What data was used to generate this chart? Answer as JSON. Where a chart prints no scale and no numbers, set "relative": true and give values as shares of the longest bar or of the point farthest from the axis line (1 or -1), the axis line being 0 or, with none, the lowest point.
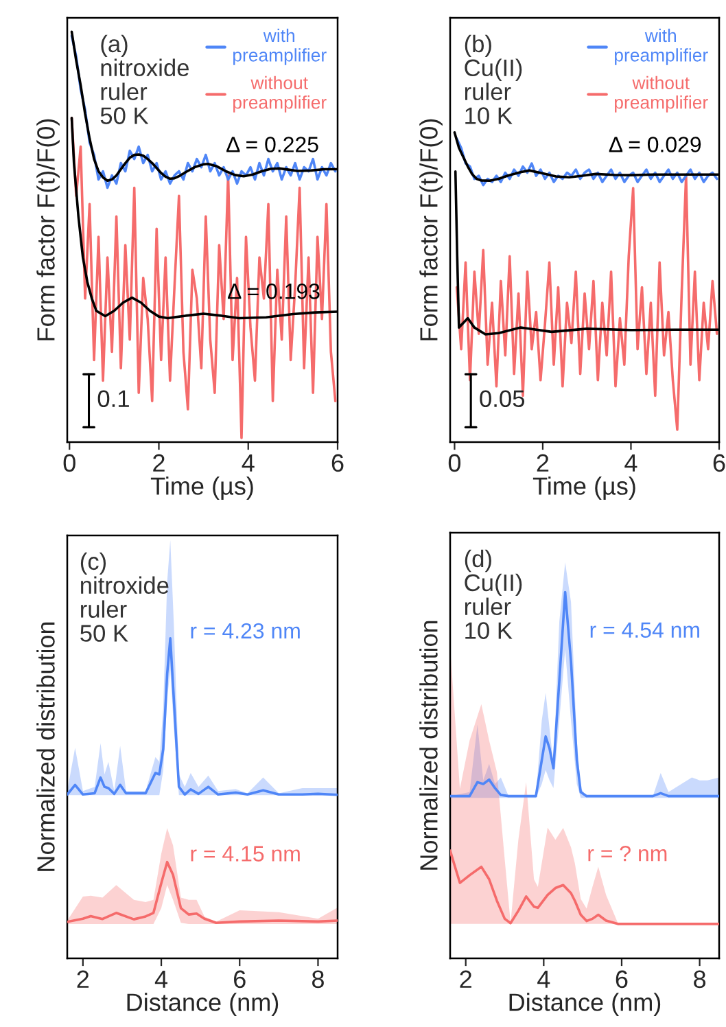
{
  "chart_data": [
    {
      "type": "line",
      "relative": true,
      "ylabel": "Form factor F(t)/F(0)",
      "xlabel": "Time (µs)",
      "xlim": [
        -0.05,
        6
      ],
      "xticks": [
        0,
        2,
        4,
        6
      ],
      "legend": "top right",
      "annotations": [
        "(a)\nnitroxide\nruler\n50 K",
        "0.1",
        "Δ = 0.225",
        "Δ = 0.193"
      ],
      "series": [
        {
          "color": "#000000",
          "x": [
            0.05,
            0.15,
            0.25,
            0.35,
            0.45,
            0.55,
            0.65,
            0.75,
            0.85,
            0.95,
            1.05,
            1.15,
            1.25,
            1.35,
            1.45,
            1.55,
            1.65,
            1.75,
            1.85,
            1.95,
            2.05,
            2.15,
            2.25,
            2.35,
            2.45,
            2.6,
            2.8,
            3.0,
            3.1,
            3.3,
            3.5,
            3.7,
            3.9,
            4.1,
            4.3,
            4.5,
            4.7,
            4.9,
            5.1,
            5.4,
            5.7,
            6.0
          ],
          "values": [
            1.0,
            0.93,
            0.87,
            0.8,
            0.74,
            0.69,
            0.66,
            0.645,
            0.637,
            0.64,
            0.65,
            0.665,
            0.68,
            0.693,
            0.7,
            0.701,
            0.698,
            0.69,
            0.68,
            0.668,
            0.656,
            0.647,
            0.642,
            0.643,
            0.648,
            0.658,
            0.67,
            0.677,
            0.678,
            0.672,
            0.66,
            0.651,
            0.648,
            0.652,
            0.66,
            0.666,
            0.667,
            0.664,
            0.661,
            0.662,
            0.665,
            0.665
          ]
        },
        {
          "color": "#000000",
          "x": [
            0.05,
            0.1,
            0.2,
            0.3,
            0.4,
            0.5,
            0.6,
            0.8,
            1.0,
            1.2,
            1.4,
            1.6,
            1.8,
            2.0,
            2.2,
            2.6,
            3.0,
            3.4,
            3.8,
            4.4,
            5.0,
            5.5,
            6.0
          ],
          "values": [
            0.79,
            0.68,
            0.55,
            0.45,
            0.39,
            0.35,
            0.32,
            0.307,
            0.32,
            0.34,
            0.352,
            0.34,
            0.32,
            0.306,
            0.302,
            0.308,
            0.313,
            0.308,
            0.302,
            0.304,
            0.312,
            0.316,
            0.318
          ]
        },
        {
          "name": "with\npreamplifier",
          "color": "#4f86f7",
          "x": [
            0.05,
            0.15,
            0.25,
            0.35,
            0.45,
            0.55,
            0.65,
            0.75,
            0.85,
            0.95,
            1.05,
            1.15,
            1.25,
            1.35,
            1.45,
            1.55,
            1.65,
            1.75,
            1.85,
            1.95,
            2.05,
            2.15,
            2.25,
            2.35,
            2.45,
            2.55,
            2.65,
            2.75,
            2.85,
            2.95,
            3.05,
            3.15,
            3.25,
            3.35,
            3.45,
            3.55,
            3.65,
            3.75,
            3.85,
            3.95,
            4.05,
            4.15,
            4.25,
            4.35,
            4.45,
            4.55,
            4.65,
            4.75,
            4.85,
            4.95,
            5.05,
            5.15,
            5.25,
            5.35,
            5.45,
            5.55,
            5.65,
            5.75,
            5.85,
            5.95
          ],
          "values": [
            0.99,
            0.94,
            0.86,
            0.81,
            0.73,
            0.7,
            0.64,
            0.66,
            0.62,
            0.65,
            0.63,
            0.68,
            0.66,
            0.71,
            0.69,
            0.72,
            0.68,
            0.7,
            0.66,
            0.68,
            0.64,
            0.66,
            0.63,
            0.65,
            0.66,
            0.64,
            0.68,
            0.66,
            0.69,
            0.67,
            0.7,
            0.66,
            0.68,
            0.65,
            0.67,
            0.64,
            0.66,
            0.63,
            0.66,
            0.65,
            0.67,
            0.64,
            0.68,
            0.65,
            0.69,
            0.66,
            0.68,
            0.64,
            0.67,
            0.65,
            0.68,
            0.64,
            0.67,
            0.66,
            0.69,
            0.64,
            0.67,
            0.65,
            0.68,
            0.66
          ]
        },
        {
          "name": "without\npreamplifier",
          "color": "#f56b6b",
          "x": [
            0.05,
            0.15,
            0.25,
            0.35,
            0.45,
            0.55,
            0.65,
            0.75,
            0.85,
            0.95,
            1.05,
            1.15,
            1.25,
            1.35,
            1.45,
            1.55,
            1.65,
            1.75,
            1.85,
            1.95,
            2.05,
            2.15,
            2.25,
            2.35,
            2.45,
            2.55,
            2.65,
            2.75,
            2.85,
            2.95,
            3.05,
            3.15,
            3.25,
            3.35,
            3.45,
            3.55,
            3.65,
            3.75,
            3.85,
            3.95,
            4.05,
            4.15,
            4.25,
            4.35,
            4.45,
            4.55,
            4.65,
            4.75,
            4.85,
            4.95,
            5.05,
            5.15,
            5.25,
            5.35,
            5.45,
            5.55,
            5.65,
            5.75,
            5.85,
            5.95
          ],
          "values": [
            0.79,
            0.6,
            0.72,
            0.35,
            0.58,
            0.2,
            0.5,
            0.15,
            0.45,
            0.22,
            0.55,
            0.18,
            0.48,
            0.25,
            0.62,
            0.12,
            0.4,
            0.3,
            0.1,
            0.52,
            0.2,
            0.45,
            0.15,
            0.38,
            0.6,
            0.22,
            0.08,
            0.42,
            0.35,
            0.18,
            0.55,
            0.25,
            0.12,
            0.48,
            0.3,
            0.65,
            0.2,
            0.4,
            0.01,
            0.5,
            0.28,
            0.15,
            0.45,
            0.35,
            0.58,
            0.1,
            0.42,
            0.25,
            0.55,
            0.2,
            0.38,
            0.62,
            0.18,
            0.45,
            0.12,
            0.5,
            0.3,
            0.58,
            0.22,
            0.1
          ]
        }
      ]
    },
    {
      "type": "line",
      "relative": true,
      "ylabel": "Form factor F(t)/F(0)",
      "xlabel": "Time (µs)",
      "xlim": [
        -0.1,
        6
      ],
      "xticks": [
        0,
        2,
        4,
        6
      ],
      "legend": "top right",
      "annotations": [
        "(b)\nCu(II)\nruler\n10 K",
        "0.05",
        "Δ = 0.029"
      ],
      "series": [
        {
          "color": "#000000",
          "x": [
            0.0,
            0.1,
            0.2,
            0.3,
            0.4,
            0.5,
            0.6,
            0.8,
            1.0,
            1.2,
            1.5,
            1.7,
            2.0,
            2.3,
            2.6,
            2.9,
            3.2,
            3.6,
            4.0,
            4.5,
            5.0,
            6.0
          ],
          "values": [
            1.0,
            0.95,
            0.92,
            0.89,
            0.865,
            0.85,
            0.845,
            0.844,
            0.85,
            0.86,
            0.872,
            0.877,
            0.868,
            0.858,
            0.855,
            0.86,
            0.866,
            0.863,
            0.862,
            0.864,
            0.864,
            0.864
          ]
        },
        {
          "color": "#000000",
          "x": [
            0.02,
            0.06,
            0.1,
            0.2,
            0.3,
            0.45,
            0.7,
            1.0,
            1.5,
            2.2,
            3.0,
            4.0,
            5.0,
            6.0
          ],
          "values": [
            0.874,
            0.6,
            0.37,
            0.385,
            0.4,
            0.37,
            0.348,
            0.352,
            0.37,
            0.356,
            0.366,
            0.362,
            0.363,
            0.363
          ]
        },
        {
          "name": "with\npreamplifier",
          "color": "#4f86f7",
          "x": [
            0.05,
            0.15,
            0.25,
            0.35,
            0.45,
            0.55,
            0.65,
            0.75,
            0.85,
            0.95,
            1.05,
            1.15,
            1.25,
            1.35,
            1.45,
            1.55,
            1.65,
            1.75,
            1.85,
            1.95,
            2.05,
            2.15,
            2.25,
            2.35,
            2.45,
            2.55,
            2.65,
            2.75,
            2.85,
            2.95,
            3.05,
            3.15,
            3.25,
            3.35,
            3.45,
            3.55,
            3.65,
            3.75,
            3.85,
            3.95,
            4.05,
            4.15,
            4.25,
            4.35,
            4.45,
            4.55,
            4.65,
            4.75,
            4.85,
            4.95,
            5.05,
            5.15,
            5.25,
            5.35,
            5.45,
            5.55,
            5.65,
            5.75,
            5.85,
            5.95
          ],
          "values": [
            0.98,
            0.95,
            0.9,
            0.89,
            0.85,
            0.86,
            0.83,
            0.85,
            0.84,
            0.86,
            0.84,
            0.87,
            0.85,
            0.88,
            0.86,
            0.89,
            0.87,
            0.9,
            0.86,
            0.88,
            0.85,
            0.87,
            0.84,
            0.86,
            0.85,
            0.87,
            0.86,
            0.88,
            0.85,
            0.87,
            0.88,
            0.85,
            0.87,
            0.84,
            0.86,
            0.88,
            0.85,
            0.87,
            0.84,
            0.86,
            0.87,
            0.84,
            0.86,
            0.88,
            0.85,
            0.87,
            0.84,
            0.86,
            0.88,
            0.85,
            0.87,
            0.84,
            0.86,
            0.88,
            0.85,
            0.87,
            0.84,
            0.86,
            0.87,
            0.85
          ]
        },
        {
          "name": "without\npreamplifier",
          "color": "#f56b6b",
          "x": [
            0.05,
            0.15,
            0.25,
            0.35,
            0.45,
            0.55,
            0.65,
            0.75,
            0.85,
            0.95,
            1.05,
            1.15,
            1.25,
            1.35,
            1.45,
            1.55,
            1.65,
            1.75,
            1.85,
            1.95,
            2.05,
            2.15,
            2.25,
            2.35,
            2.45,
            2.55,
            2.65,
            2.75,
            2.85,
            2.95,
            3.05,
            3.15,
            3.25,
            3.35,
            3.45,
            3.55,
            3.65,
            3.75,
            3.85,
            3.95,
            4.05,
            4.15,
            4.25,
            4.35,
            4.45,
            4.55,
            4.65,
            4.75,
            4.85,
            4.95,
            5.05,
            5.15,
            5.25,
            5.35,
            5.45,
            5.55,
            5.65,
            5.75,
            5.85,
            5.95
          ],
          "values": [
            0.5,
            0.3,
            0.58,
            0.2,
            0.55,
            0.35,
            0.62,
            0.25,
            0.45,
            0.18,
            0.52,
            0.28,
            0.6,
            0.22,
            0.48,
            0.15,
            0.55,
            0.3,
            0.42,
            0.2,
            0.38,
            0.58,
            0.25,
            0.5,
            0.18,
            0.45,
            0.32,
            0.55,
            0.22,
            0.48,
            0.3,
            0.52,
            0.2,
            0.45,
            0.28,
            0.55,
            0.18,
            0.4,
            0.25,
            0.6,
            0.82,
            0.3,
            0.5,
            0.22,
            0.45,
            0.15,
            0.58,
            0.28,
            0.42,
            0.2,
            0.04,
            0.48,
            0.86,
            0.25,
            0.55,
            0.2,
            0.45,
            0.3,
            0.52,
            0.35
          ]
        }
      ]
    },
    {
      "type": "line",
      "relative": true,
      "ylabel": "Normalized distribution",
      "xlabel": "Distance (nm)",
      "xlim": [
        1.6,
        8.5
      ],
      "xticks": [
        2,
        4,
        6,
        8
      ],
      "annotations": [
        "(c)\nnitroxide\nruler\n50 K",
        "r = 4.23 nm",
        "r = 4.15 nm"
      ],
      "series": [
        {
          "color": "#4f86f7",
          "x": [
            1.6,
            1.8,
            2.0,
            2.3,
            2.45,
            2.55,
            2.65,
            2.8,
            2.95,
            3.1,
            3.6,
            3.85,
            3.95,
            4.05,
            4.15,
            4.23,
            4.32,
            4.45,
            4.6,
            4.75,
            4.95,
            5.2,
            5.45,
            5.9,
            6.2,
            6.6,
            7.0,
            7.6,
            8.0,
            8.5
          ],
          "values": [
            0.512,
            0.542,
            0.512,
            0.516,
            0.565,
            0.536,
            0.532,
            0.514,
            0.542,
            0.516,
            0.516,
            0.579,
            0.575,
            0.654,
            0.889,
            1.0,
            0.81,
            0.536,
            0.512,
            0.528,
            0.514,
            0.536,
            0.512,
            0.518,
            0.512,
            0.525,
            0.512,
            0.512,
            0.514,
            0.511
          ],
          "lower": [
            0.51,
            0.51,
            0.51,
            0.51,
            0.51,
            0.51,
            0.51,
            0.51,
            0.51,
            0.51,
            0.51,
            0.51,
            0.51,
            0.588,
            0.81,
            0.901,
            0.719,
            0.51,
            0.51,
            0.51,
            0.51,
            0.51,
            0.51,
            0.51,
            0.51,
            0.51,
            0.51,
            0.51,
            0.51,
            0.51
          ],
          "upper": [
            0.523,
            0.658,
            0.523,
            0.536,
            0.672,
            0.575,
            0.614,
            0.523,
            0.664,
            0.523,
            0.523,
            0.629,
            0.614,
            0.784,
            1.176,
            1.307,
            1.046,
            0.575,
            0.536,
            0.579,
            0.536,
            0.571,
            0.523,
            0.529,
            0.516,
            0.565,
            0.516,
            0.532,
            0.532,
            0.532
          ]
        },
        {
          "color": "#f56b6b",
          "x": [
            1.6,
            2.0,
            2.2,
            2.5,
            2.85,
            3.3,
            3.6,
            3.8,
            4.0,
            4.15,
            4.3,
            4.5,
            4.7,
            4.9,
            5.1,
            5.4,
            6.0,
            7.0,
            8.0,
            8.5
          ],
          "values": [
            0.114,
            0.124,
            0.132,
            0.123,
            0.142,
            0.122,
            0.131,
            0.142,
            0.235,
            0.301,
            0.261,
            0.157,
            0.137,
            0.14,
            0.124,
            0.111,
            0.115,
            0.118,
            0.115,
            0.118
          ],
          "lower": [
            0.107,
            0.107,
            0.107,
            0.107,
            0.107,
            0.107,
            0.107,
            0.107,
            0.157,
            0.229,
            0.183,
            0.111,
            0.107,
            0.107,
            0.107,
            0.107,
            0.107,
            0.107,
            0.107,
            0.107
          ],
          "upper": [
            0.118,
            0.193,
            0.196,
            0.19,
            0.229,
            0.183,
            0.176,
            0.183,
            0.327,
            0.407,
            0.353,
            0.19,
            0.183,
            0.183,
            0.131,
            0.115,
            0.15,
            0.144,
            0.124,
            0.159
          ]
        }
      ]
    },
    {
      "type": "line",
      "relative": true,
      "ylabel": "Normalized distribution",
      "xlabel": "Distance (nm)",
      "xlim": [
        1.6,
        8.5
      ],
      "xticks": [
        2,
        4,
        6,
        8
      ],
      "annotations": [
        "(d)\nCu(II)\nruler\n10 K",
        "r = 4.54 nm",
        "r = ? nm"
      ],
      "series": [
        {
          "color": "#4f86f7",
          "x": [
            1.6,
            2.1,
            2.3,
            2.45,
            2.6,
            2.75,
            2.9,
            3.1,
            3.8,
            3.95,
            4.05,
            4.15,
            4.25,
            4.4,
            4.55,
            4.7,
            4.85,
            4.95,
            5.1,
            6.8,
            7.0,
            7.2,
            7.8,
            8.0,
            8.2,
            8.5
          ],
          "values": [
            0.443,
            0.443,
            0.481,
            0.476,
            0.488,
            0.465,
            0.446,
            0.443,
            0.443,
            0.541,
            0.606,
            0.573,
            0.519,
            0.757,
            1.0,
            0.811,
            0.541,
            0.454,
            0.443,
            0.443,
            0.451,
            0.443,
            0.443,
            0.443,
            0.443,
            0.443
          ],
          "lower": [
            0.438,
            0.438,
            0.438,
            0.438,
            0.438,
            0.438,
            0.438,
            0.438,
            0.438,
            0.476,
            0.514,
            0.486,
            0.465,
            0.649,
            0.843,
            0.649,
            0.476,
            0.438,
            0.438,
            0.438,
            0.438,
            0.438,
            0.438,
            0.438,
            0.438,
            0.438
          ],
          "upper": [
            0.443,
            0.454,
            0.638,
            0.486,
            0.531,
            0.476,
            0.494,
            0.443,
            0.443,
            0.649,
            0.725,
            0.627,
            0.53,
            0.919,
            1.081,
            0.973,
            0.595,
            0.465,
            0.443,
            0.443,
            0.506,
            0.454,
            0.494,
            0.486,
            0.486,
            0.494
          ]
        },
        {
          "color": "#f56b6b",
          "x": [
            1.6,
            1.85,
            2.1,
            2.4,
            2.6,
            2.8,
            3.0,
            3.15,
            3.35,
            3.55,
            3.75,
            3.85,
            4.1,
            4.3,
            4.5,
            4.7,
            4.8,
            4.95,
            5.1,
            5.25,
            5.4,
            5.6,
            5.9,
            7.0,
            8.5
          ],
          "values": [
            0.294,
            0.206,
            0.227,
            0.25,
            0.216,
            0.157,
            0.108,
            0.096,
            0.13,
            0.169,
            0.141,
            0.138,
            0.173,
            0.192,
            0.2,
            0.178,
            0.157,
            0.119,
            0.102,
            0.108,
            0.119,
            0.103,
            0.094,
            0.094,
            0.094
          ],
          "lower": [
            0.094,
            0.094,
            0.094,
            0.094,
            0.094,
            0.094,
            0.094,
            0.094,
            0.094,
            0.094,
            0.094,
            0.094,
            0.094,
            0.094,
            0.094,
            0.094,
            0.094,
            0.094,
            0.094,
            0.094,
            0.094,
            0.094,
            0.094,
            0.094,
            0.094
          ],
          "upper": [
            0.85,
            0.463,
            0.595,
            0.694,
            0.595,
            0.508,
            0.27,
            0.097,
            0.324,
            0.481,
            0.216,
            0.195,
            0.357,
            0.324,
            0.356,
            0.303,
            0.259,
            0.162,
            0.136,
            0.195,
            0.25,
            0.173,
            0.097,
            0.094,
            0.094
          ]
        }
      ]
    }
  ]
}
